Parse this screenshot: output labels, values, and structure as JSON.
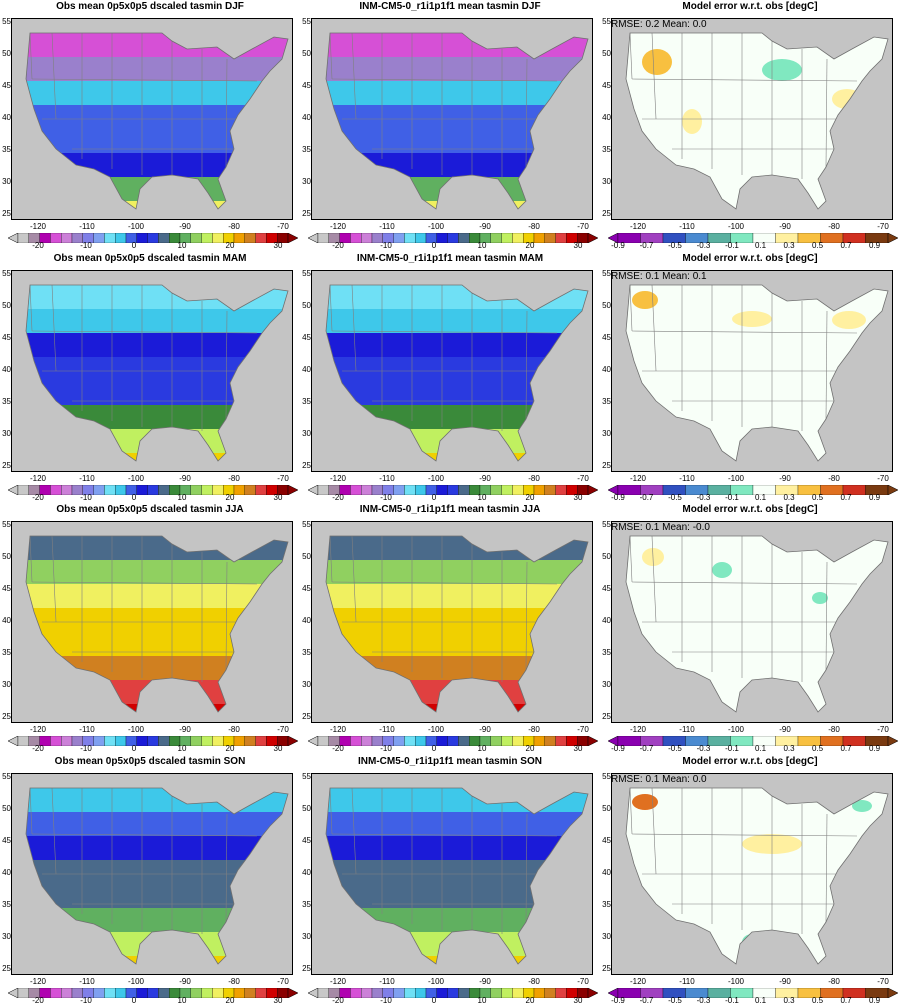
{
  "rows": [
    {
      "season": "DJF",
      "obs_title": "Obs mean 0p5x0p5 dscaled tasmin DJF",
      "model_title": "INM-CM5-0_r1i1p1f1 mean tasmin DJF",
      "err_title": "Model error w.r.t. obs [degC]",
      "err_stats": "RMSE: 0.2  Mean: 0.0"
    },
    {
      "season": "MAM",
      "obs_title": "Obs mean 0p5x0p5 dscaled tasmin MAM",
      "model_title": "INM-CM5-0_r1i1p1f1 mean tasmin MAM",
      "err_title": "Model error w.r.t. obs [degC]",
      "err_stats": "RMSE: 0.1  Mean: 0.1"
    },
    {
      "season": "JJA",
      "obs_title": "Obs mean 0p5x0p5 dscaled tasmin JJA",
      "model_title": "INM-CM5-0_r1i1p1f1 mean tasmin JJA",
      "err_title": "Model error w.r.t. obs [degC]",
      "err_stats": "RMSE: 0.1  Mean: -0.0"
    },
    {
      "season": "SON",
      "obs_title": "Obs mean 0p5x0p5 dscaled tasmin SON",
      "model_title": "INM-CM5-0_r1i1p1f1 mean tasmin SON",
      "err_title": "Model error w.r.t. obs [degC]",
      "err_stats": "RMSE: 0.1  Mean: 0.0"
    }
  ],
  "x_ticks": [
    "-120",
    "-110",
    "-100",
    "-90",
    "-80",
    "-70"
  ],
  "y_ticks": [
    "25",
    "30",
    "35",
    "40",
    "45",
    "50",
    "55"
  ],
  "temp_scale": {
    "labels": [
      "-20",
      "-10",
      "0",
      "10",
      "20",
      "30"
    ],
    "colors": [
      "#c8c8c8",
      "#a68aa6",
      "#b000b0",
      "#d650d6",
      "#cc80d8",
      "#9a80cc",
      "#7f7fe8",
      "#7fa0f0",
      "#6fe0f5",
      "#3ec8ea",
      "#4060e6",
      "#1b1bd8",
      "#2a3ae0",
      "#4a6a8a",
      "#3a8a3a",
      "#60b060",
      "#90d060",
      "#c0f060",
      "#f0f060",
      "#f0d000",
      "#f0a000",
      "#d08020",
      "#e04040",
      "#d00000",
      "#8a0000"
    ]
  },
  "err_scale": {
    "labels": [
      "-0.9",
      "-0.7",
      "-0.5",
      "-0.3",
      "-0.1",
      "0.1",
      "0.3",
      "0.5",
      "0.7",
      "0.9"
    ],
    "colors": [
      "#8a00b0",
      "#a040c0",
      "#3050c0",
      "#4a8ad0",
      "#5ab0a0",
      "#80e8c0",
      "#f8fff8",
      "#fff0a0",
      "#f8c040",
      "#e07020",
      "#d03020",
      "#7a3a10"
    ]
  },
  "colors": {
    "land_mask": "#c4c4c4",
    "border": "#808080",
    "frame": "#000000"
  }
}
